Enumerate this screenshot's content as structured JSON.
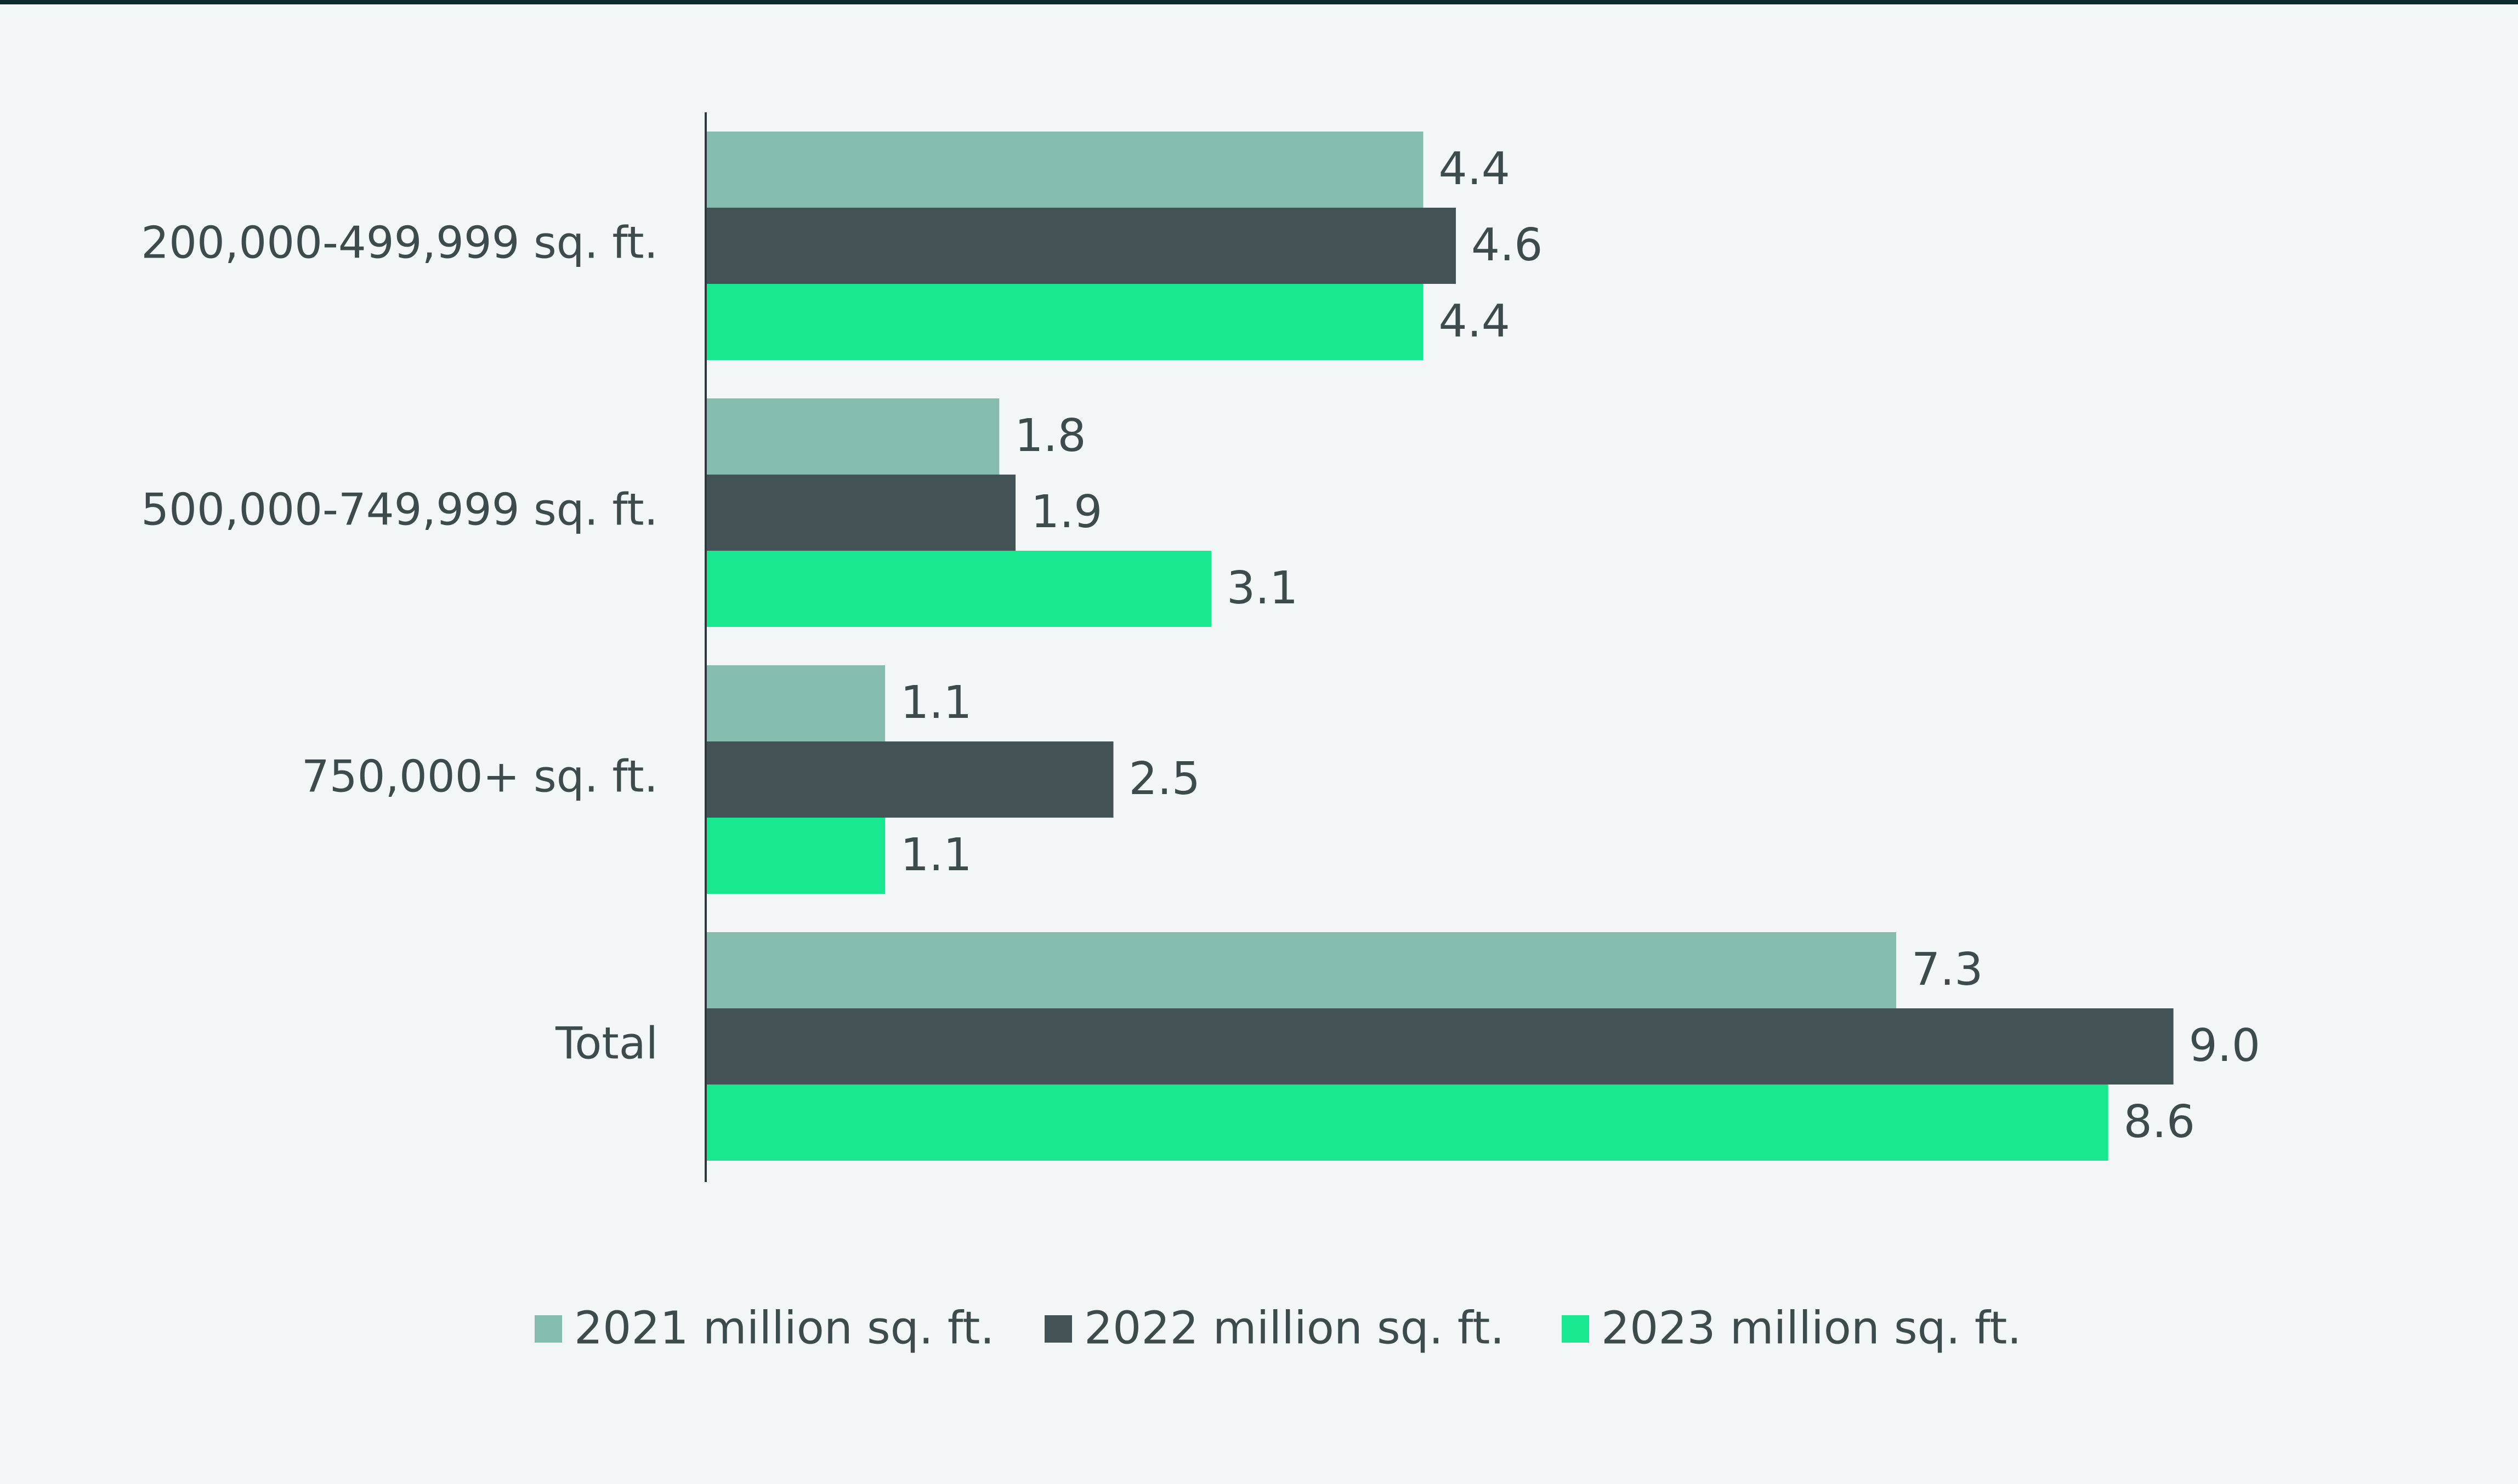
{
  "chart_data": {
    "type": "bar",
    "orientation": "horizontal",
    "title": "",
    "xlabel": "",
    "ylabel": "",
    "xlim": [
      0,
      9.0
    ],
    "grid": false,
    "legend_position": "bottom",
    "categories": [
      "200,000-499,999 sq. ft.",
      "500,000-749,999 sq. ft.",
      "750,000+ sq. ft.",
      "Total"
    ],
    "series": [
      {
        "name": "2021 million sq. ft.",
        "color": "#84bcae",
        "values": [
          4.4,
          1.8,
          1.1,
          7.3
        ],
        "labels": [
          "4.4",
          "1.8",
          "1.1",
          "7.3"
        ]
      },
      {
        "name": "2022 million sq. ft.",
        "color": "#435254",
        "values": [
          4.6,
          1.9,
          2.5,
          9.0
        ],
        "labels": [
          "4.6",
          "1.9",
          "2.5",
          "9.0"
        ]
      },
      {
        "name": "2023 million sq. ft.",
        "color": "#17e88f",
        "values": [
          4.4,
          3.1,
          1.1,
          8.6
        ],
        "labels": [
          "4.4",
          "3.1",
          "1.1",
          "8.6"
        ]
      }
    ]
  },
  "colors": {
    "background": "#f2f6f6",
    "text": "#3d4b4d",
    "axis": "#2f3a3c"
  }
}
